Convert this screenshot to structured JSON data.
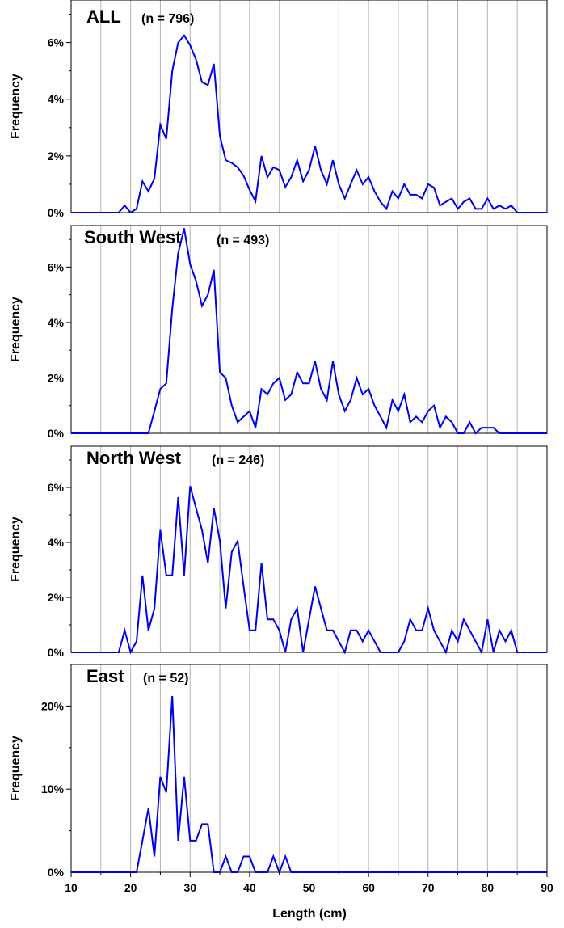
{
  "chart_data": {
    "type": "line",
    "xlabel": "Length (cm)",
    "xlim": [
      10,
      90
    ],
    "xticks": [
      10,
      20,
      30,
      40,
      50,
      60,
      70,
      80,
      90
    ],
    "series_color": "#0000ee",
    "grid": true,
    "panels": [
      {
        "title": "ALL",
        "n_label": "(n = 796)",
        "ylabel": "Frequency",
        "ylim": [
          0,
          7.5
        ],
        "yticks": [
          0,
          2,
          4,
          6
        ],
        "ytick_labels": [
          "0%",
          "2%",
          "4%",
          "6%"
        ],
        "x": [
          10,
          11,
          12,
          13,
          14,
          15,
          16,
          17,
          18,
          19,
          20,
          21,
          22,
          23,
          24,
          25,
          26,
          27,
          28,
          29,
          30,
          31,
          32,
          33,
          34,
          35,
          36,
          37,
          38,
          39,
          40,
          41,
          42,
          43,
          44,
          45,
          46,
          47,
          48,
          49,
          50,
          51,
          52,
          53,
          54,
          55,
          56,
          57,
          58,
          59,
          60,
          61,
          62,
          63,
          64,
          65,
          66,
          67,
          68,
          69,
          70,
          71,
          72,
          73,
          74,
          75,
          76,
          77,
          78,
          79,
          80,
          81,
          82,
          83,
          84,
          85,
          86,
          87,
          88,
          89,
          90
        ],
        "values": [
          0,
          0,
          0,
          0,
          0,
          0,
          0,
          0,
          0,
          0.25,
          0,
          0.13,
          1.1,
          0.75,
          1.2,
          3.1,
          2.6,
          5.0,
          6.0,
          6.25,
          5.9,
          5.4,
          4.6,
          4.5,
          5.25,
          2.7,
          1.85,
          1.75,
          1.6,
          1.3,
          0.8,
          0.4,
          2.0,
          1.25,
          1.6,
          1.5,
          0.9,
          1.25,
          1.85,
          1.1,
          1.5,
          2.35,
          1.5,
          1.0,
          1.85,
          1.0,
          0.5,
          1.0,
          1.5,
          1.0,
          1.25,
          0.75,
          0.38,
          0.13,
          0.75,
          0.5,
          1.0,
          0.63,
          0.63,
          0.5,
          1.0,
          0.88,
          0.25,
          0.38,
          0.5,
          0.13,
          0.38,
          0.5,
          0.13,
          0.13,
          0.5,
          0.13,
          0.25,
          0.13,
          0.25,
          0,
          0,
          0,
          0,
          0,
          0
        ]
      },
      {
        "title": "South West",
        "n_label": "(n = 493)",
        "ylabel": "Frequency",
        "ylim": [
          0,
          7.5
        ],
        "yticks": [
          0,
          2,
          4,
          6
        ],
        "ytick_labels": [
          "0%",
          "2%",
          "4%",
          "6%"
        ],
        "x": [
          10,
          11,
          12,
          13,
          14,
          15,
          16,
          17,
          18,
          19,
          20,
          21,
          22,
          23,
          24,
          25,
          26,
          27,
          28,
          29,
          30,
          31,
          32,
          33,
          34,
          35,
          36,
          37,
          38,
          39,
          40,
          41,
          42,
          43,
          44,
          45,
          46,
          47,
          48,
          49,
          50,
          51,
          52,
          53,
          54,
          55,
          56,
          57,
          58,
          59,
          60,
          61,
          62,
          63,
          64,
          65,
          66,
          67,
          68,
          69,
          70,
          71,
          72,
          73,
          74,
          75,
          76,
          77,
          78,
          79,
          80,
          81,
          82,
          83,
          84,
          85,
          86,
          87,
          88,
          89,
          90
        ],
        "values": [
          0,
          0,
          0,
          0,
          0,
          0,
          0,
          0,
          0,
          0,
          0,
          0,
          0,
          0,
          0.8,
          1.6,
          1.8,
          4.5,
          6.5,
          7.4,
          6.1,
          5.5,
          4.6,
          5.0,
          5.9,
          2.2,
          2.0,
          1.0,
          0.4,
          0.6,
          0.8,
          0.2,
          1.6,
          1.4,
          1.8,
          2.0,
          1.2,
          1.4,
          2.2,
          1.8,
          1.8,
          2.6,
          1.6,
          1.2,
          2.6,
          1.4,
          0.8,
          1.2,
          2.0,
          1.4,
          1.6,
          1.0,
          0.6,
          0.2,
          1.2,
          0.8,
          1.4,
          0.4,
          0.6,
          0.4,
          0.8,
          1.0,
          0.2,
          0.6,
          0.4,
          0,
          0,
          0.4,
          0,
          0.2,
          0.2,
          0.2,
          0,
          0,
          0,
          0,
          0,
          0,
          0,
          0,
          0
        ]
      },
      {
        "title": "North West",
        "n_label": "(n = 246)",
        "ylabel": "Frequency",
        "ylim": [
          0,
          7.5
        ],
        "yticks": [
          0,
          2,
          4,
          6
        ],
        "ytick_labels": [
          "0%",
          "2%",
          "4%",
          "6%"
        ],
        "x": [
          10,
          11,
          12,
          13,
          14,
          15,
          16,
          17,
          18,
          19,
          20,
          21,
          22,
          23,
          24,
          25,
          26,
          27,
          28,
          29,
          30,
          31,
          32,
          33,
          34,
          35,
          36,
          37,
          38,
          39,
          40,
          41,
          42,
          43,
          44,
          45,
          46,
          47,
          48,
          49,
          50,
          51,
          52,
          53,
          54,
          55,
          56,
          57,
          58,
          59,
          60,
          61,
          62,
          63,
          64,
          65,
          66,
          67,
          68,
          69,
          70,
          71,
          72,
          73,
          74,
          75,
          76,
          77,
          78,
          79,
          80,
          81,
          82,
          83,
          84,
          85,
          86,
          87,
          88,
          89,
          90
        ],
        "values": [
          0,
          0,
          0,
          0,
          0,
          0,
          0,
          0,
          0,
          0.8,
          0,
          0.4,
          2.8,
          0.8,
          1.6,
          4.45,
          2.8,
          2.8,
          5.65,
          2.8,
          6.05,
          5.25,
          4.45,
          3.25,
          5.25,
          4.05,
          1.6,
          3.65,
          4.05,
          2.4,
          0.8,
          0.8,
          3.25,
          1.2,
          1.2,
          0.8,
          0,
          1.2,
          1.6,
          0,
          1.2,
          2.4,
          1.6,
          0.8,
          0.8,
          0.4,
          0,
          0.8,
          0.8,
          0.4,
          0.8,
          0.4,
          0,
          0,
          0,
          0,
          0.4,
          1.2,
          0.8,
          0.8,
          1.6,
          0.8,
          0.4,
          0,
          0.8,
          0.4,
          1.2,
          0.8,
          0.4,
          0,
          1.2,
          0,
          0.8,
          0.4,
          0.8,
          0,
          0,
          0,
          0,
          0,
          0
        ]
      },
      {
        "title": "East",
        "n_label": "(n = 52)",
        "ylabel": "Frequency",
        "ylim": [
          0,
          25
        ],
        "yticks": [
          0,
          10,
          20
        ],
        "ytick_labels": [
          "0%",
          "10%",
          "20%"
        ],
        "x": [
          10,
          11,
          12,
          13,
          14,
          15,
          16,
          17,
          18,
          19,
          20,
          21,
          22,
          23,
          24,
          25,
          26,
          27,
          28,
          29,
          30,
          31,
          32,
          33,
          34,
          35,
          36,
          37,
          38,
          39,
          40,
          41,
          42,
          43,
          44,
          45,
          46,
          47,
          48,
          49,
          50,
          51,
          52,
          53,
          54,
          55,
          56,
          57,
          58,
          59,
          60,
          61,
          62,
          63,
          64,
          65,
          66,
          67,
          68,
          69,
          70,
          71,
          72,
          73,
          74,
          75,
          76,
          77,
          78,
          79,
          80,
          81,
          82,
          83,
          84,
          85,
          86,
          87,
          88,
          89,
          90
        ],
        "values": [
          0,
          0,
          0,
          0,
          0,
          0,
          0,
          0,
          0,
          0,
          0,
          0,
          3.8,
          7.7,
          1.9,
          11.5,
          9.6,
          21.2,
          3.8,
          11.5,
          3.8,
          3.8,
          5.8,
          5.8,
          0,
          0,
          1.9,
          0,
          0,
          1.9,
          1.9,
          0,
          0,
          0,
          1.9,
          0,
          1.9,
          0,
          0,
          0,
          0,
          0,
          0,
          0,
          0,
          0,
          0,
          0,
          0,
          0,
          0,
          0,
          0,
          0,
          0,
          0,
          0,
          0,
          0,
          0,
          0,
          0,
          0,
          0,
          0,
          0,
          0,
          0,
          0,
          0,
          0,
          0,
          0,
          0,
          0,
          0,
          0,
          0,
          0,
          0,
          0
        ]
      }
    ]
  }
}
